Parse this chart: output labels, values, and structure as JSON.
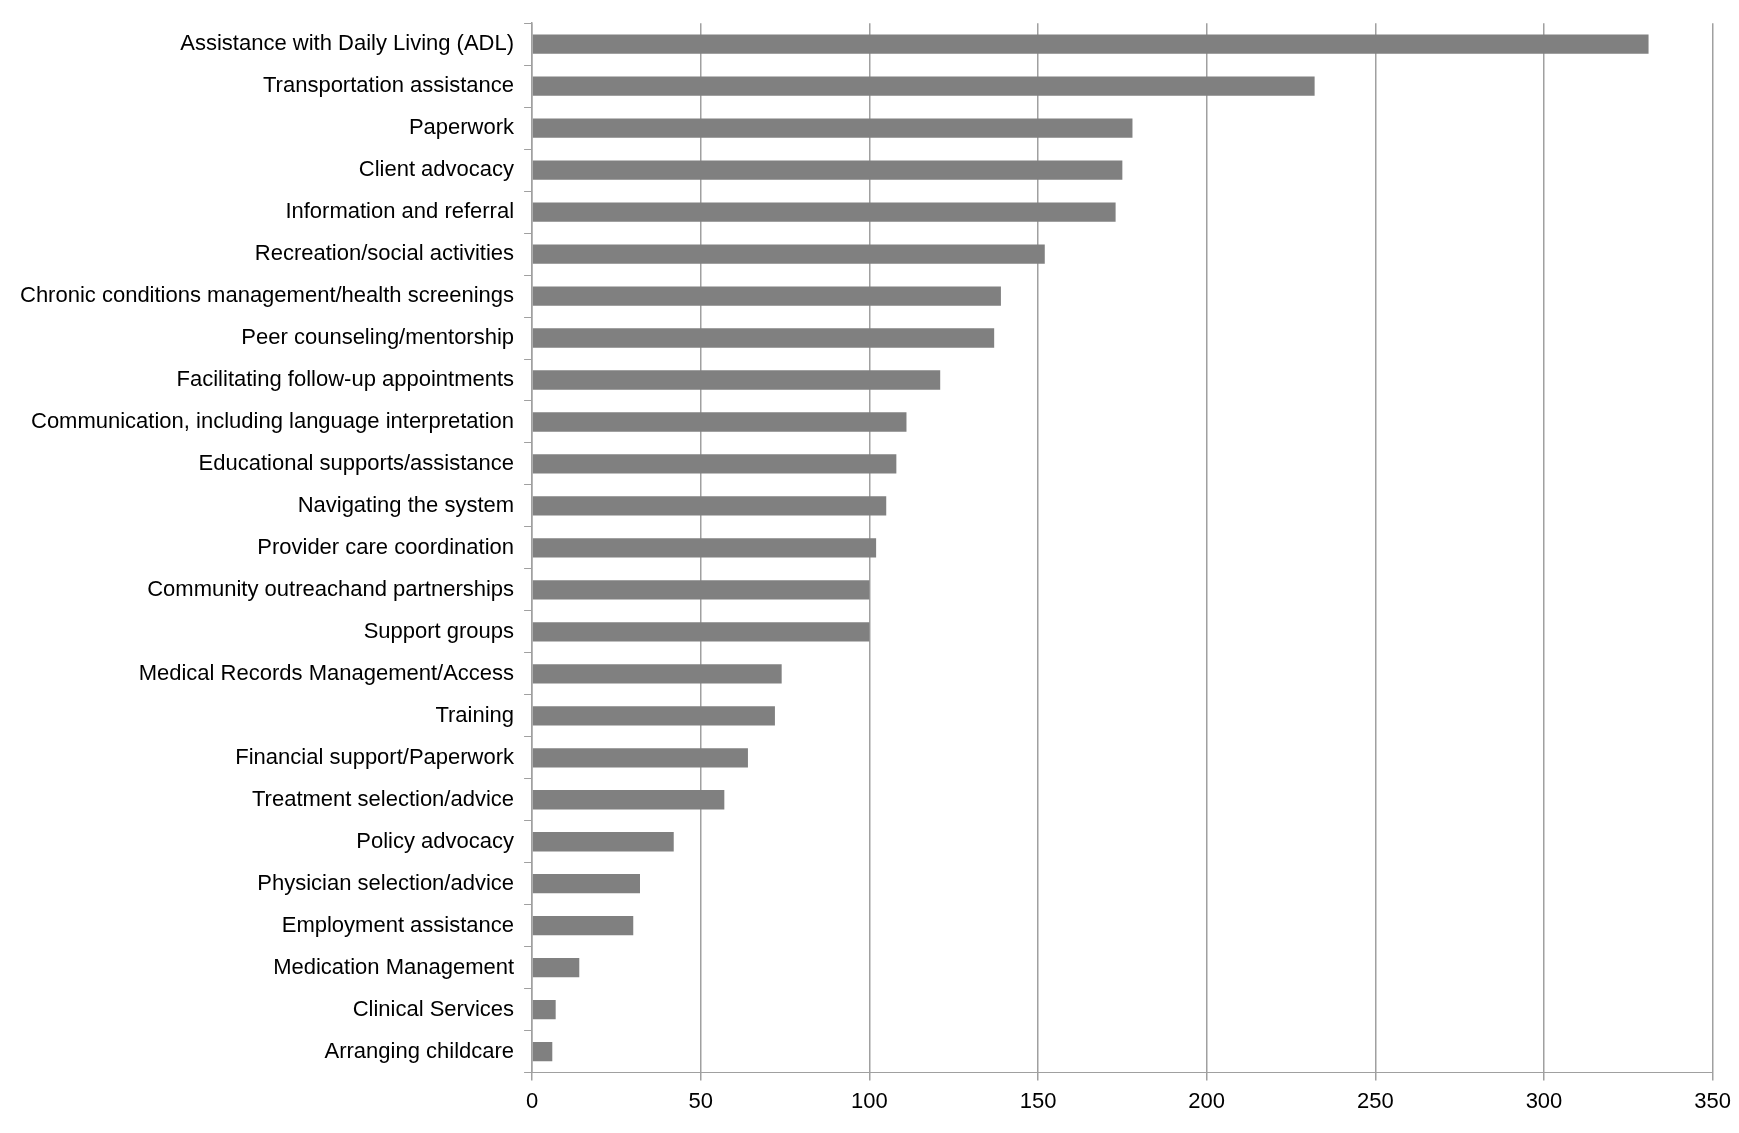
{
  "chart_data": {
    "type": "bar",
    "orientation": "horizontal",
    "categories": [
      "Assistance with Daily Living (ADL)",
      "Transportation assistance",
      "Paperwork",
      "Client advocacy",
      "Information and referral",
      "Recreation/social activities",
      "Chronic conditions management/health screenings",
      "Peer counseling/mentorship",
      "Facilitating follow-up appointments",
      "Communication, including language interpretation",
      "Educational supports/assistance",
      "Navigating the system",
      "Provider care coordination",
      "Community outreachand partnerships",
      "Support groups",
      "Medical Records Management/Access",
      "Training",
      "Financial support/Paperwork",
      "Treatment selection/advice",
      "Policy advocacy",
      "Physician selection/advice",
      "Employment assistance",
      "Medication Management",
      "Clinical Services",
      "Arranging childcare"
    ],
    "values": [
      331,
      232,
      178,
      175,
      173,
      152,
      139,
      137,
      121,
      111,
      108,
      105,
      102,
      100,
      100,
      74,
      72,
      64,
      57,
      42,
      32,
      30,
      14,
      7,
      6
    ],
    "color": "#808080",
    "xlim": [
      0,
      350
    ],
    "xticks": [
      0,
      50,
      100,
      150,
      200,
      250,
      300,
      350
    ],
    "grid": "x",
    "legend": false
  }
}
